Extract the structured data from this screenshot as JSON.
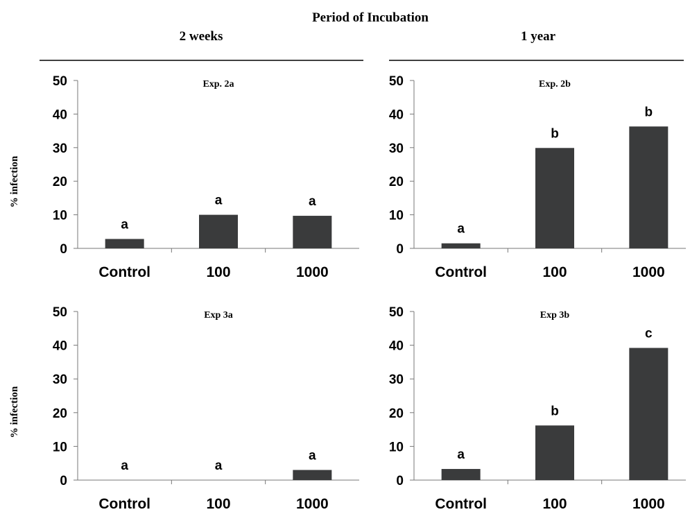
{
  "figure": {
    "title": "Period of Incubation",
    "columns": [
      "2 weeks",
      "1 year"
    ],
    "row_ylabels": [
      "% infection",
      "% infection"
    ],
    "colors": {
      "bar": "#3a3b3c",
      "axis": "#777777",
      "text": "#000000"
    }
  },
  "chart_data": [
    {
      "type": "bar",
      "title": "Exp. 2a",
      "categories": [
        "Control",
        "100",
        "1000"
      ],
      "values": [
        2.8,
        10,
        9.7
      ],
      "bar_labels": [
        "a",
        "a",
        "a"
      ],
      "ylabel": "% infection",
      "ylim": [
        0,
        50
      ],
      "yticks": [
        0,
        10,
        20,
        30,
        40,
        50
      ],
      "grid": false
    },
    {
      "type": "bar",
      "title": "Exp. 2b",
      "categories": [
        "Control",
        "100",
        "1000"
      ],
      "values": [
        1.5,
        29.9,
        36.3
      ],
      "bar_labels": [
        "a",
        "b",
        "b"
      ],
      "ylabel": "",
      "ylim": [
        0,
        50
      ],
      "yticks": [
        0,
        10,
        20,
        30,
        40,
        50
      ],
      "grid": false
    },
    {
      "type": "bar",
      "title": "Exp 3a",
      "categories": [
        "Control",
        "100",
        "1000"
      ],
      "values": [
        0,
        0,
        3
      ],
      "bar_labels": [
        "a",
        "a",
        "a"
      ],
      "ylabel": "% infection",
      "ylim": [
        0,
        50
      ],
      "yticks": [
        0,
        10,
        20,
        30,
        40,
        50
      ],
      "grid": false
    },
    {
      "type": "bar",
      "title": "Exp 3b",
      "categories": [
        "Control",
        "100",
        "1000"
      ],
      "values": [
        3.3,
        16.2,
        39.2
      ],
      "bar_labels": [
        "a",
        "b",
        "c"
      ],
      "ylabel": "",
      "ylim": [
        0,
        50
      ],
      "yticks": [
        0,
        10,
        20,
        30,
        40,
        50
      ],
      "grid": false
    }
  ]
}
